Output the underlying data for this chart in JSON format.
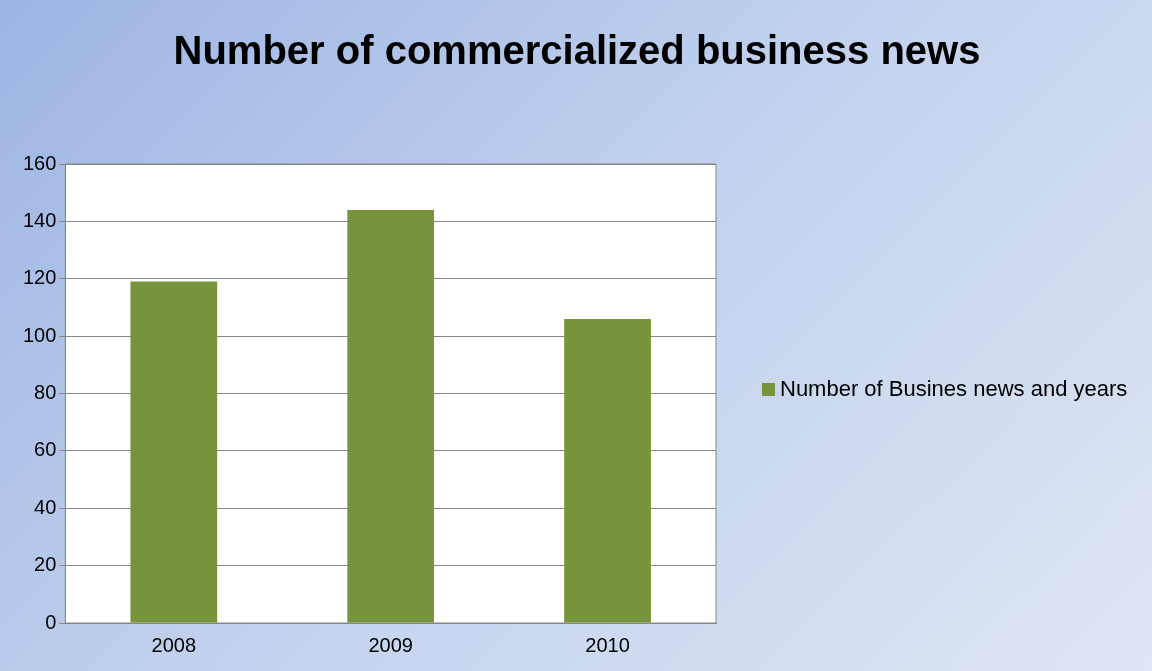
{
  "chart_data": {
    "type": "bar",
    "title": "Number of commercialized business news",
    "categories": [
      "2008",
      "2009",
      "2010"
    ],
    "series": [
      {
        "name": "Number of Busines news and years",
        "color": "#77933c",
        "values": [
          119,
          144,
          106
        ]
      }
    ],
    "ylim": [
      0,
      160
    ],
    "yticks": [
      0,
      20,
      40,
      60,
      80,
      100,
      120,
      140,
      160
    ],
    "grid": "y",
    "legend": "right"
  }
}
